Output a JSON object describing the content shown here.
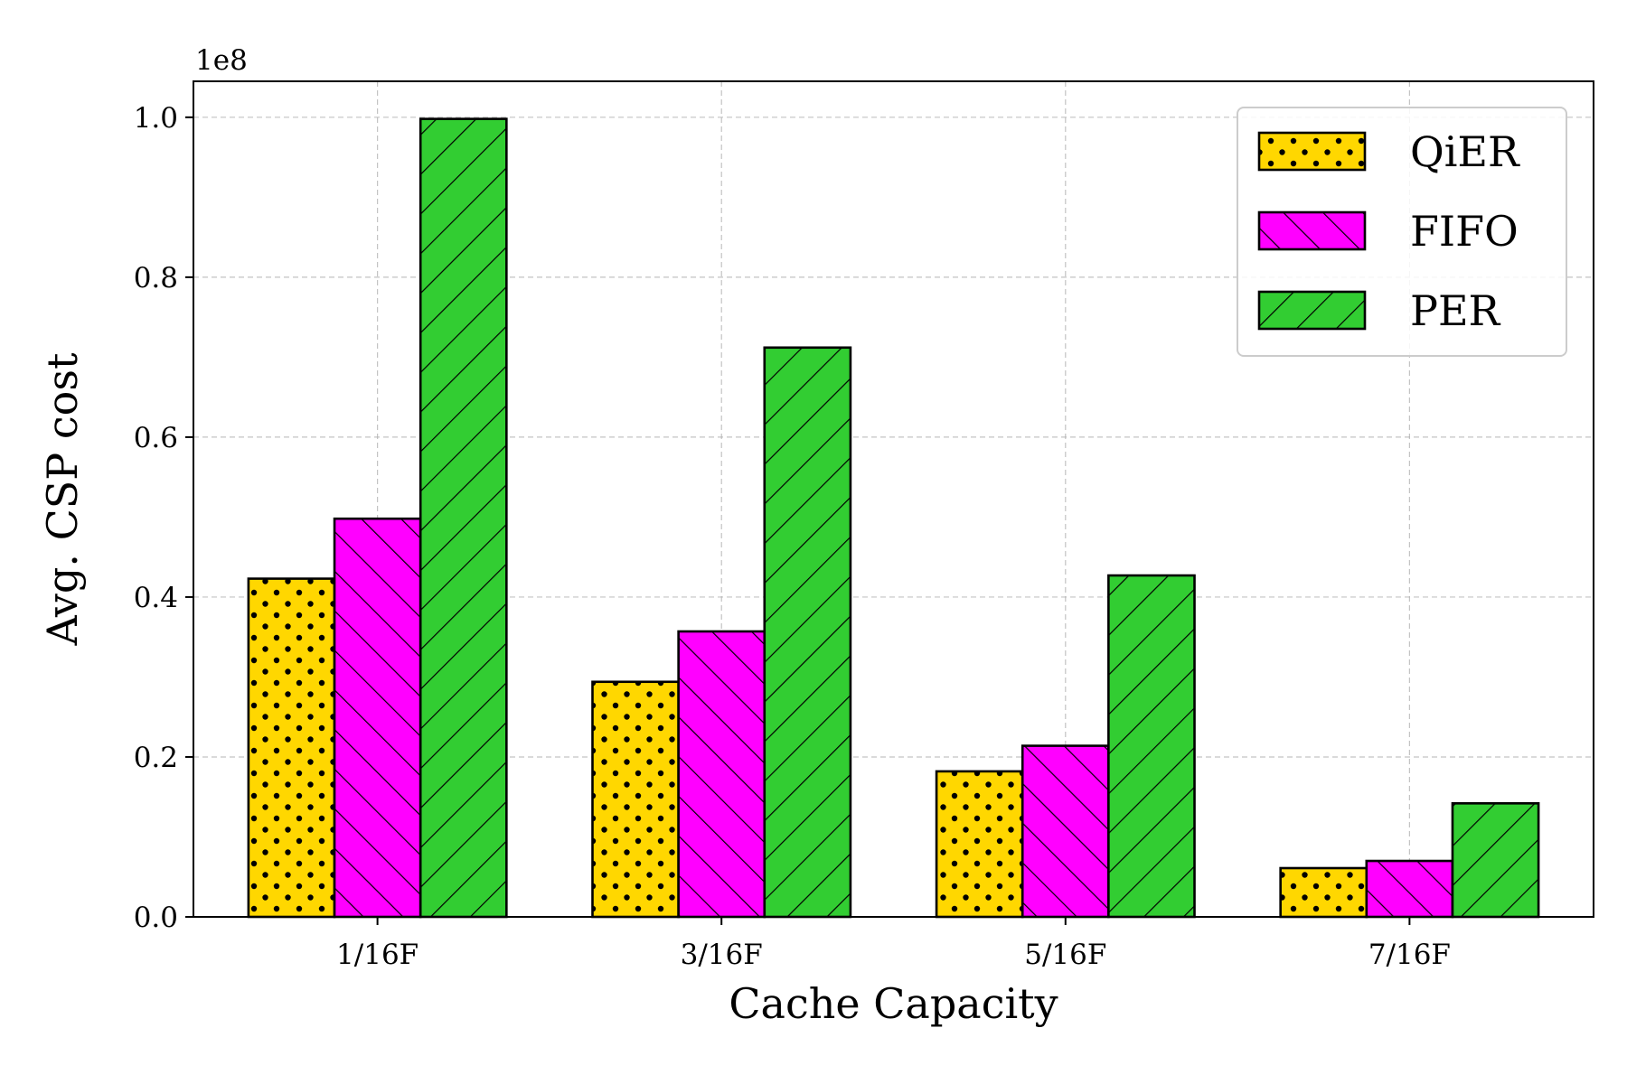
{
  "chart_data": {
    "type": "bar",
    "categories": [
      "1/16F",
      "3/16F",
      "5/16F",
      "7/16F"
    ],
    "series": [
      {
        "name": "QiER",
        "values": [
          42300000,
          29400000,
          18200000,
          6100000
        ],
        "color": "#FFD700",
        "hatch": "dots"
      },
      {
        "name": "FIFO",
        "values": [
          49800000,
          35700000,
          21400000,
          7000000
        ],
        "color": "#FF00FF",
        "hatch": "backslash"
      },
      {
        "name": "PER",
        "values": [
          99800000,
          71200000,
          42700000,
          14200000
        ],
        "color": "#32CD32",
        "hatch": "slash"
      }
    ],
    "title": "",
    "xlabel": "Cache Capacity",
    "ylabel": "Avg. CSP cost",
    "ylim": [
      0,
      104500000
    ],
    "y_offset_label": "1e8",
    "yticks": [
      0,
      20000000,
      40000000,
      60000000,
      80000000,
      100000000
    ],
    "ytick_labels": [
      "0.0",
      "0.2",
      "0.4",
      "0.6",
      "0.8",
      "1.0"
    ],
    "grid": true,
    "legend_position": "top-right"
  }
}
